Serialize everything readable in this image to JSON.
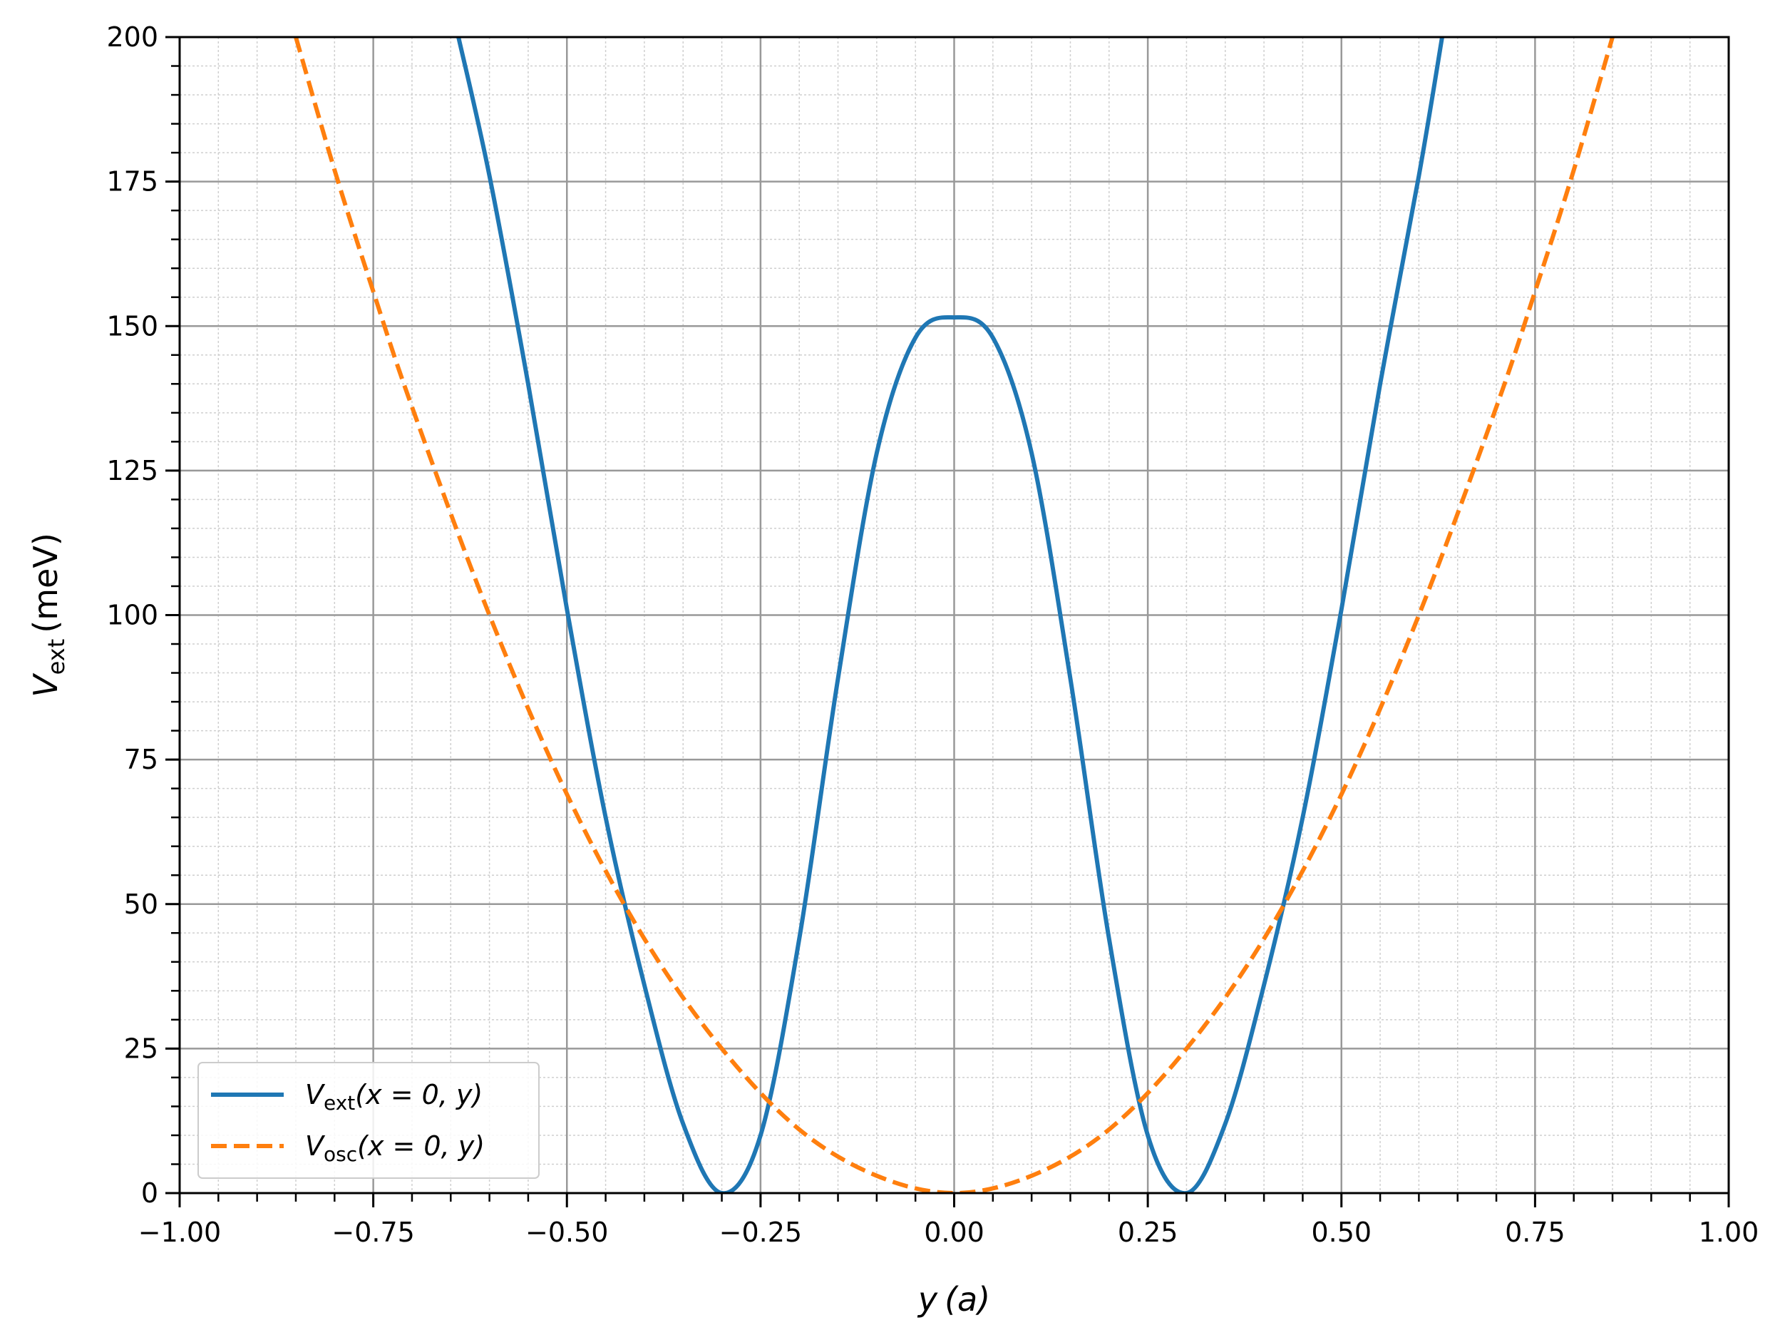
{
  "chart_data": {
    "type": "line",
    "xlabel": {
      "main": "y",
      "unit": "(a)"
    },
    "ylabel": {
      "main": "V",
      "sub": "ext",
      "unit": "(meV)"
    },
    "xlim": [
      -1.0,
      1.0
    ],
    "ylim": [
      0,
      200
    ],
    "x_ticks": [
      -1.0,
      -0.75,
      -0.5,
      -0.25,
      0.0,
      0.25,
      0.5,
      0.75,
      1.0
    ],
    "x_tick_labels": [
      "−1.00",
      "−0.75",
      "−0.50",
      "−0.25",
      "0.00",
      "0.25",
      "0.50",
      "0.75",
      "1.00"
    ],
    "y_ticks": [
      0,
      25,
      50,
      75,
      100,
      125,
      150,
      175,
      200
    ],
    "y_tick_labels": [
      "0",
      "25",
      "50",
      "75",
      "100",
      "125",
      "150",
      "175",
      "200"
    ],
    "x_minor_step": 0.05,
    "y_minor_step": 5,
    "grid": {
      "major": true,
      "minor": true
    },
    "legend_position": "lower-left",
    "series": [
      {
        "name": "V_ext(x = 0, y)",
        "legend": {
          "main": "V",
          "sub": "ext",
          "rest": "(x = 0, y)"
        },
        "color": "#1f77b4",
        "style": "solid",
        "x": [
          -0.64,
          -0.6,
          -0.55,
          -0.5,
          -0.45,
          -0.4,
          -0.35,
          -0.3,
          -0.25,
          -0.2,
          -0.15,
          -0.1,
          -0.05,
          0.0,
          0.05,
          0.1,
          0.15,
          0.2,
          0.25,
          0.3,
          0.35,
          0.4,
          0.45,
          0.5,
          0.55,
          0.6,
          0.63
        ],
        "y": [
          200,
          176,
          140,
          101,
          65,
          36,
          12,
          0,
          10,
          44,
          89,
          128,
          148,
          151.5,
          148,
          128,
          89,
          44,
          10,
          0,
          12,
          36,
          65,
          101,
          140,
          176,
          200
        ]
      },
      {
        "name": "V_osc(x = 0, y)",
        "legend": {
          "main": "V",
          "sub": "osc",
          "rest": "(x = 0, y)"
        },
        "color": "#ff7f0e",
        "style": "dashed",
        "x": [
          -0.85,
          -0.8,
          -0.75,
          -0.7,
          -0.6,
          -0.5,
          -0.4,
          -0.3,
          -0.2,
          -0.1,
          0.0,
          0.1,
          0.2,
          0.3,
          0.4,
          0.5,
          0.6,
          0.7,
          0.75,
          0.8,
          0.85
        ],
        "y": [
          200,
          177,
          156,
          136,
          100,
          69,
          44,
          25,
          11,
          3,
          0,
          3,
          11,
          25,
          44,
          69,
          100,
          136,
          156,
          177,
          200
        ]
      }
    ]
  }
}
